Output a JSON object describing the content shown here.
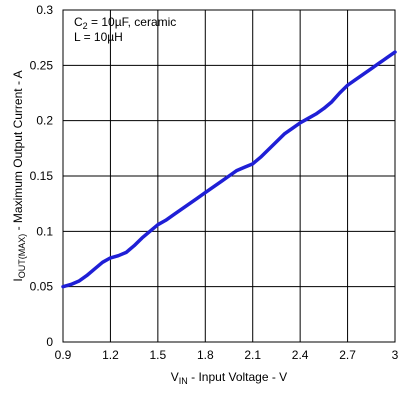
{
  "chart_data": {
    "type": "line",
    "xlabel_main": "V",
    "xlabel_sub": "IN",
    "xlabel_rest": " - Input Voltage - V",
    "ylabel_main": "I",
    "ylabel_sub": "OUT(MAX)",
    "ylabel_rest": " - Maximum Output Current - A",
    "xlim": [
      0.9,
      3.0
    ],
    "ylim": [
      0,
      0.3
    ],
    "x_ticks": [
      "0.9",
      "1.2",
      "1.5",
      "1.8",
      "2.1",
      "2.4",
      "2.7",
      "3"
    ],
    "y_ticks": [
      "0",
      "0.05",
      "0.1",
      "0.15",
      "0.2",
      "0.25",
      "0.3"
    ],
    "grid": true,
    "annotation_line1_main": "C",
    "annotation_line1_sub": "2",
    "annotation_line1_rest": " = 10µF, ceramic",
    "annotation_line2": "L = 10µH",
    "series": [
      {
        "color": "#1f1fd6",
        "x": [
          0.9,
          0.95,
          1.0,
          1.05,
          1.1,
          1.15,
          1.2,
          1.25,
          1.3,
          1.35,
          1.4,
          1.45,
          1.5,
          1.55,
          1.6,
          1.65,
          1.7,
          1.75,
          1.8,
          1.85,
          1.9,
          1.95,
          2.0,
          2.05,
          2.1,
          2.15,
          2.2,
          2.25,
          2.3,
          2.35,
          2.4,
          2.45,
          2.5,
          2.55,
          2.6,
          2.65,
          2.7,
          2.75,
          2.8,
          2.85,
          2.9,
          2.95,
          3.0
        ],
        "y": [
          0.05,
          0.052,
          0.055,
          0.06,
          0.066,
          0.072,
          0.076,
          0.078,
          0.081,
          0.087,
          0.094,
          0.1,
          0.106,
          0.11,
          0.115,
          0.12,
          0.125,
          0.13,
          0.135,
          0.14,
          0.145,
          0.15,
          0.155,
          0.158,
          0.161,
          0.167,
          0.174,
          0.181,
          0.188,
          0.193,
          0.198,
          0.202,
          0.206,
          0.211,
          0.217,
          0.225,
          0.232,
          0.237,
          0.242,
          0.247,
          0.252,
          0.257,
          0.262
        ]
      }
    ]
  }
}
